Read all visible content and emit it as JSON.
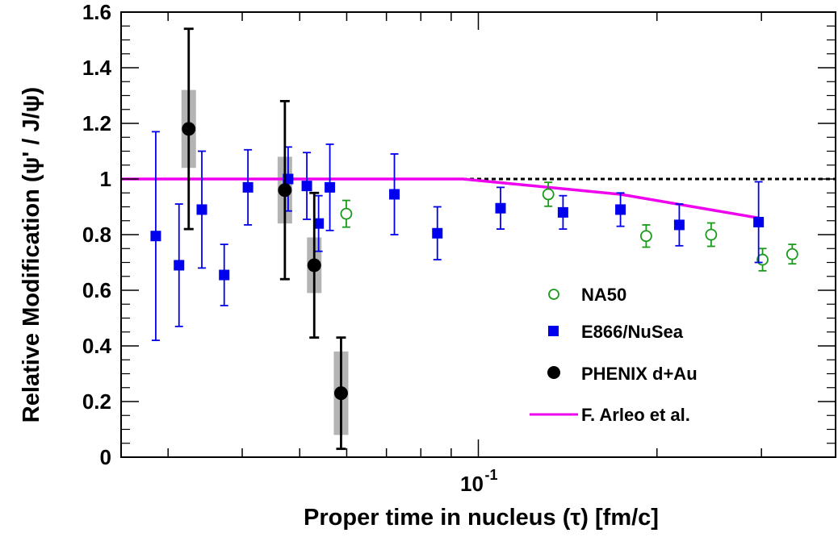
{
  "chart_data": {
    "type": "scatter",
    "x_scale": "log",
    "xlim": [
      0.025,
      0.4
    ],
    "ylim": [
      0,
      1.6
    ],
    "xlabel": "Proper time in nucleus (τ) [fm/c]",
    "ylabel": "Relative Modification (ψ' / J/ψ)",
    "x_tick_label": {
      "base": "10",
      "exponent": "-1"
    },
    "y_tick_labels": [
      "0",
      "0.2",
      "0.4",
      "0.6",
      "0.8",
      "1",
      "1.2",
      "1.4",
      "1.6"
    ],
    "reference_line": {
      "y": 1,
      "style": "dotted",
      "color": "#000000"
    },
    "legend_position": "bottom-right",
    "series": [
      {
        "name": "NA50",
        "marker": "open-circle",
        "color": "#1a9a1a",
        "points": [
          {
            "x": 0.0599,
            "y": 0.875,
            "err": 0.048
          },
          {
            "x": 0.1312,
            "y": 0.945,
            "err": 0.043
          },
          {
            "x": 0.1918,
            "y": 0.795,
            "err": 0.04
          },
          {
            "x": 0.2468,
            "y": 0.8,
            "err": 0.042
          },
          {
            "x": 0.3013,
            "y": 0.71,
            "err": 0.04
          },
          {
            "x": 0.3381,
            "y": 0.73,
            "err": 0.035
          }
        ]
      },
      {
        "name": "E866/NuSea",
        "marker": "filled-square",
        "color": "#0000ee",
        "points": [
          {
            "x": 0.0286,
            "y": 0.795,
            "err": 0.375
          },
          {
            "x": 0.0313,
            "y": 0.69,
            "err": 0.22
          },
          {
            "x": 0.0342,
            "y": 0.89,
            "err": 0.21
          },
          {
            "x": 0.0373,
            "y": 0.655,
            "err": 0.11
          },
          {
            "x": 0.0409,
            "y": 0.97,
            "err": 0.135
          },
          {
            "x": 0.0478,
            "y": 1.0,
            "err": 0.115
          },
          {
            "x": 0.0514,
            "y": 0.975,
            "err": 0.12
          },
          {
            "x": 0.0538,
            "y": 0.84,
            "err": 0.1
          },
          {
            "x": 0.0562,
            "y": 0.97,
            "err": 0.155
          },
          {
            "x": 0.0722,
            "y": 0.945,
            "err": 0.145
          },
          {
            "x": 0.0853,
            "y": 0.805,
            "err": 0.095
          },
          {
            "x": 0.109,
            "y": 0.895,
            "err": 0.075
          },
          {
            "x": 0.1389,
            "y": 0.88,
            "err": 0.06
          },
          {
            "x": 0.1736,
            "y": 0.89,
            "err": 0.06
          },
          {
            "x": 0.2181,
            "y": 0.835,
            "err": 0.075
          },
          {
            "x": 0.2967,
            "y": 0.845,
            "err": 0.145
          }
        ]
      },
      {
        "name": "PHENIX d+Au",
        "marker": "filled-circle",
        "color": "#000000",
        "points": [
          {
            "x": 0.0325,
            "y": 1.18,
            "err": 0.36,
            "sys": 0.14
          },
          {
            "x": 0.0472,
            "y": 0.96,
            "err": 0.32,
            "sys": 0.12
          },
          {
            "x": 0.0529,
            "y": 0.69,
            "err": 0.26,
            "sys": 0.1
          },
          {
            "x": 0.0587,
            "y": 0.23,
            "err": 0.2,
            "sys": 0.15
          }
        ]
      },
      {
        "name": "F. Arleo et al.",
        "marker": "line",
        "color": "#ee00ee",
        "points": [
          {
            "x": 0.025,
            "y": 1.0
          },
          {
            "x": 0.0942,
            "y": 1.0
          },
          {
            "x": 0.1736,
            "y": 0.945
          },
          {
            "x": 0.2967,
            "y": 0.86
          }
        ]
      }
    ]
  }
}
